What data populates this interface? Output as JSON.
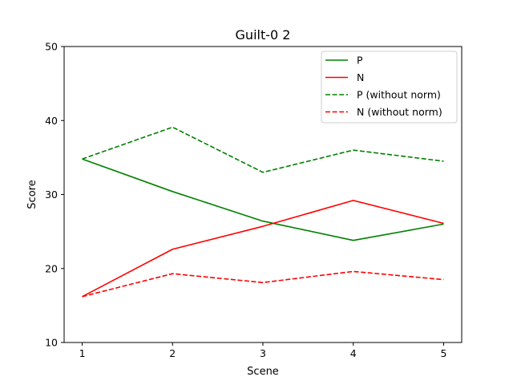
{
  "chart_data": {
    "type": "line",
    "title": "Guilt-0 2",
    "xlabel": "Scene",
    "ylabel": "Score",
    "x": [
      1,
      2,
      3,
      4,
      5
    ],
    "xticks": [
      "1",
      "2",
      "3",
      "4",
      "5"
    ],
    "yticks": [
      "10",
      "20",
      "30",
      "40",
      "50"
    ],
    "xlim": [
      0.8,
      5.2
    ],
    "ylim": [
      10,
      50
    ],
    "grid": false,
    "legend_position": "top-right",
    "series": [
      {
        "name": "P",
        "values": [
          34.8,
          30.4,
          26.4,
          23.8,
          26.0
        ],
        "color": "#008000",
        "style": "solid"
      },
      {
        "name": "N",
        "values": [
          16.2,
          22.6,
          25.7,
          29.2,
          26.1
        ],
        "color": "#ff0000",
        "style": "solid"
      },
      {
        "name": "P (without norm)",
        "values": [
          34.8,
          39.1,
          33.0,
          36.0,
          34.5
        ],
        "color": "#008000",
        "style": "dashed"
      },
      {
        "name": "N (without norm)",
        "values": [
          16.2,
          19.3,
          18.1,
          19.6,
          18.5
        ],
        "color": "#ff0000",
        "style": "dashed"
      }
    ]
  }
}
